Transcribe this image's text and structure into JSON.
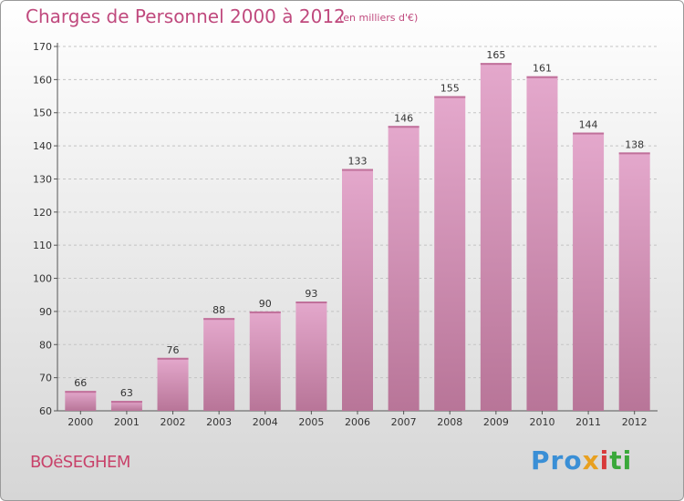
{
  "header": {
    "title": "Charges de Personnel 2000 à 2012",
    "subtitle": "(en milliers d'€)"
  },
  "footer": {
    "city": "BOëSEGHEM",
    "logo_parts": [
      "Pro",
      "x",
      "i",
      "ti"
    ]
  },
  "colors": {
    "bar_top": "#e4a8cc",
    "bar_bottom": "#b87598",
    "title": "#c04a7e",
    "city": "#c8426a"
  },
  "chart_data": {
    "type": "bar",
    "title": "Charges de Personnel 2000 à 2012",
    "categories": [
      "2000",
      "2001",
      "2002",
      "2003",
      "2004",
      "2005",
      "2006",
      "2007",
      "2008",
      "2009",
      "2010",
      "2011",
      "2012"
    ],
    "values": [
      66,
      63,
      76,
      88,
      90,
      93,
      133,
      146,
      155,
      165,
      161,
      144,
      138
    ],
    "ylim": [
      60,
      170
    ],
    "yticks": [
      60,
      70,
      80,
      90,
      100,
      110,
      120,
      130,
      140,
      150,
      160,
      170
    ],
    "grid": true,
    "legend": "none"
  }
}
